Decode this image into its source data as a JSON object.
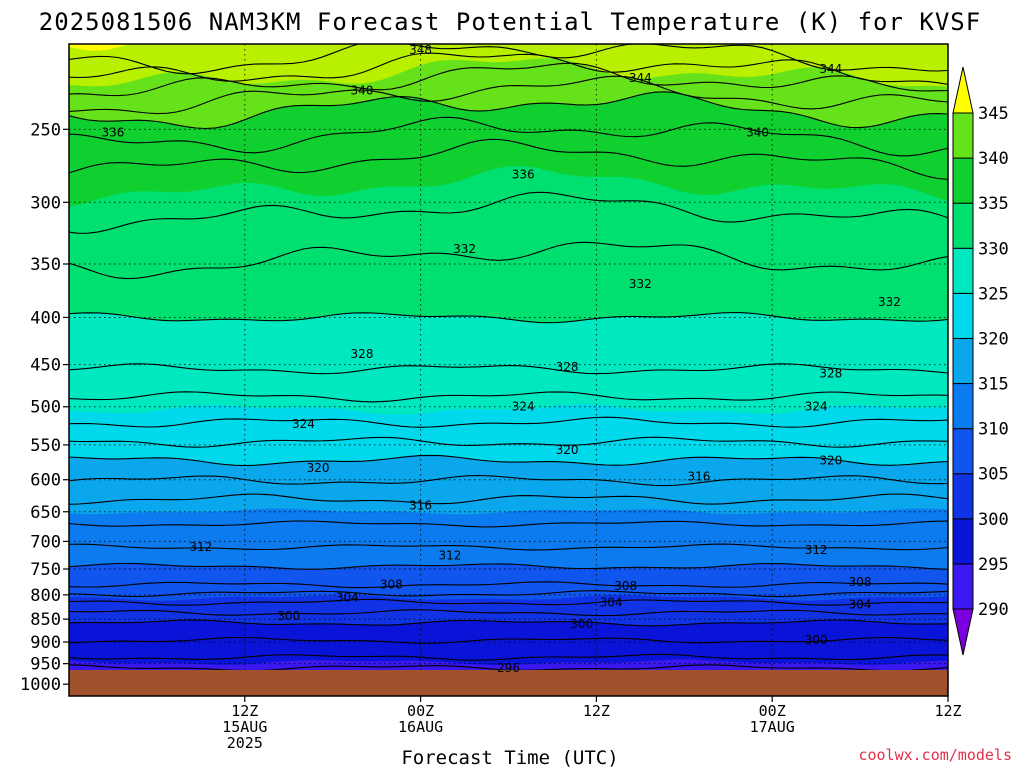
{
  "chart_data": {
    "type": "heatmap",
    "title": "2025081506 NAM3KM Forecast Potential Temperature (K) for KVSF",
    "xlabel": "Forecast Time (UTC)",
    "ylabel": "",
    "y_scale": "log",
    "y_inverted": true,
    "y_ticks": [
      250,
      300,
      350,
      400,
      450,
      500,
      550,
      600,
      650,
      700,
      750,
      800,
      850,
      900,
      950,
      1000
    ],
    "y_tick_labels": [
      "250",
      "300",
      "350",
      "400",
      "450",
      "500",
      "550",
      "600",
      "650",
      "700",
      "750",
      "800",
      "850",
      "900",
      "950",
      "1000"
    ],
    "x_range_hours": [
      -6,
      54
    ],
    "x_ticks": [
      {
        "hour": 6,
        "labels": [
          "12Z",
          "15AUG",
          "2025"
        ]
      },
      {
        "hour": 18,
        "labels": [
          "00Z",
          "16AUG"
        ]
      },
      {
        "hour": 30,
        "labels": [
          "12Z"
        ]
      },
      {
        "hour": 42,
        "labels": [
          "00Z",
          "17AUG"
        ]
      },
      {
        "hour": 54,
        "labels": [
          "12Z"
        ]
      }
    ],
    "colorbar": {
      "levels": [
        290,
        295,
        300,
        305,
        310,
        315,
        320,
        325,
        330,
        335,
        340,
        345
      ],
      "labels": [
        "290",
        "295",
        "300",
        "305",
        "310",
        "315",
        "320",
        "325",
        "330",
        "335",
        "340",
        "345"
      ],
      "colors": [
        "#7b00e0",
        "#3b17f0",
        "#0a14d8",
        "#1033e6",
        "#0f55ee",
        "#0d7bf0",
        "#0aa7ec",
        "#00d8ec",
        "#00e8c0",
        "#00e070",
        "#10d030",
        "#66e21a",
        "#b8f000",
        "#ffff00"
      ]
    },
    "contour_labels": [
      {
        "text": "348",
        "hour": 18,
        "p": 205
      },
      {
        "text": "340",
        "hour": 14,
        "p": 227
      },
      {
        "text": "344",
        "hour": 33,
        "p": 220
      },
      {
        "text": "344",
        "hour": 46,
        "p": 215
      },
      {
        "text": "336",
        "hour": -3,
        "p": 252
      },
      {
        "text": "340",
        "hour": 41,
        "p": 252
      },
      {
        "text": "336",
        "hour": 25,
        "p": 280
      },
      {
        "text": "332",
        "hour": 21,
        "p": 337
      },
      {
        "text": "332",
        "hour": 33,
        "p": 368
      },
      {
        "text": "332",
        "hour": 50,
        "p": 385
      },
      {
        "text": "328",
        "hour": 14,
        "p": 438
      },
      {
        "text": "328",
        "hour": 28,
        "p": 453
      },
      {
        "text": "328",
        "hour": 46,
        "p": 460
      },
      {
        "text": "324",
        "hour": 10,
        "p": 522
      },
      {
        "text": "324",
        "hour": 25,
        "p": 500
      },
      {
        "text": "324",
        "hour": 45,
        "p": 500
      },
      {
        "text": "320",
        "hour": 11,
        "p": 583
      },
      {
        "text": "320",
        "hour": 28,
        "p": 557
      },
      {
        "text": "320",
        "hour": 46,
        "p": 572
      },
      {
        "text": "316",
        "hour": 18,
        "p": 640
      },
      {
        "text": "316",
        "hour": 37,
        "p": 595
      },
      {
        "text": "312",
        "hour": 3,
        "p": 710
      },
      {
        "text": "312",
        "hour": 20,
        "p": 725
      },
      {
        "text": "312",
        "hour": 45,
        "p": 715
      },
      {
        "text": "308",
        "hour": 16,
        "p": 780
      },
      {
        "text": "308",
        "hour": 32,
        "p": 782
      },
      {
        "text": "308",
        "hour": 48,
        "p": 775
      },
      {
        "text": "304",
        "hour": 13,
        "p": 805
      },
      {
        "text": "304",
        "hour": 31,
        "p": 815
      },
      {
        "text": "304",
        "hour": 48,
        "p": 820
      },
      {
        "text": "300",
        "hour": 9,
        "p": 843
      },
      {
        "text": "300",
        "hour": 29,
        "p": 860
      },
      {
        "text": "300",
        "hour": 45,
        "p": 895
      },
      {
        "text": "296",
        "hour": 24,
        "p": 960
      }
    ],
    "grid": true,
    "legend": "right"
  },
  "credit": "coolwx.com/models"
}
